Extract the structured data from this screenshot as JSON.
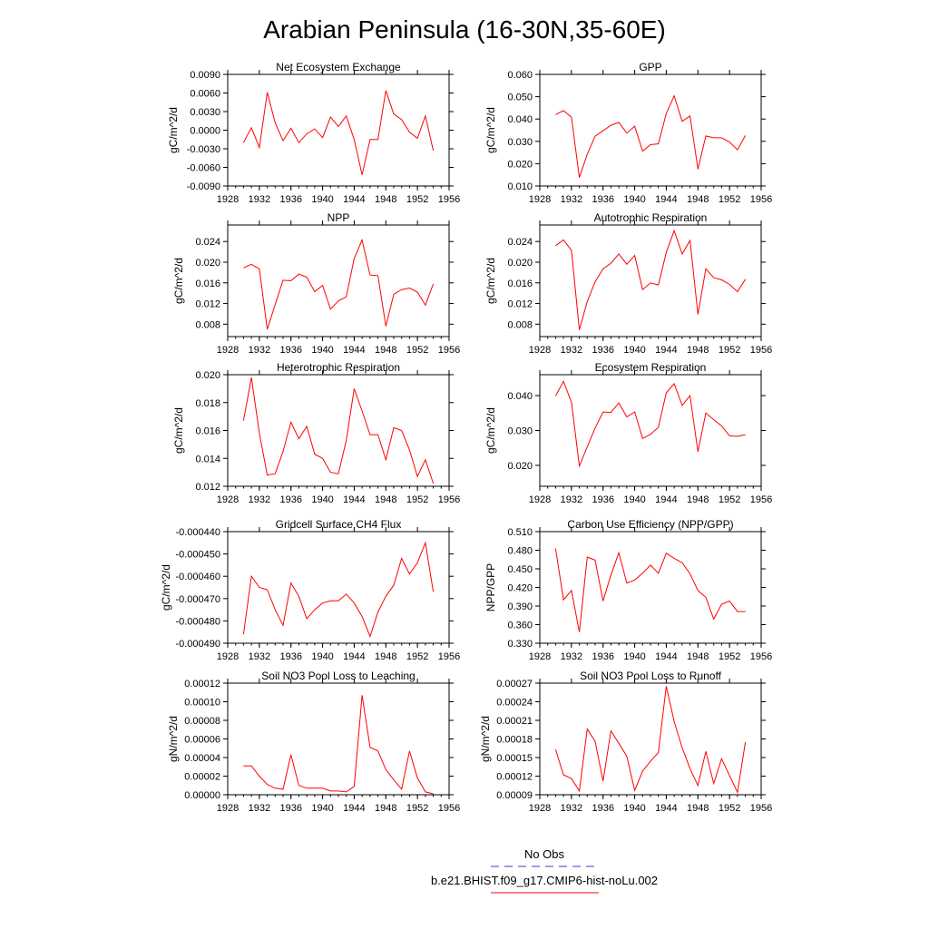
{
  "figure": {
    "title": "Arabian Peninsula (16-30N,35-60E)",
    "series_color": "#ff0000",
    "obs_color": "#3b3bd0"
  },
  "legend": {
    "obs_label": "No Obs",
    "model_label": "b.e21.BHIST.f09_g17.CMIP6-hist-noLu.002"
  },
  "x_years": [
    1930,
    1931,
    1932,
    1933,
    1934,
    1935,
    1936,
    1937,
    1938,
    1939,
    1940,
    1941,
    1942,
    1943,
    1944,
    1945,
    1946,
    1947,
    1948,
    1949,
    1950,
    1951,
    1952,
    1953,
    1954
  ],
  "chart_data": [
    {
      "type": "line",
      "title": "Net Ecosystem Exchange",
      "ylabel": "gC/m^2/d",
      "xlim": [
        1928,
        1956
      ],
      "xticks": [
        1928,
        1932,
        1936,
        1940,
        1944,
        1948,
        1952,
        1956
      ],
      "ylim": [
        -0.009,
        0.009
      ],
      "yticks": [
        "-0.0090",
        "-0.0060",
        "-0.0030",
        "0.0000",
        "0.0030",
        "0.0060",
        "0.0090"
      ],
      "ytick_values": [
        -0.009,
        -0.006,
        -0.003,
        0,
        0.003,
        0.006,
        0.009
      ],
      "values": [
        -0.002,
        0.0004,
        -0.0028,
        0.0061,
        0.0012,
        -0.0017,
        0.0003,
        -0.002,
        -0.0006,
        0.0002,
        -0.0012,
        0.0021,
        0.0006,
        0.0023,
        -0.0015,
        -0.0072,
        -0.0015,
        -0.0015,
        0.0064,
        0.0026,
        0.0017,
        -0.0003,
        -0.0013,
        0.0023,
        -0.0033
      ]
    },
    {
      "type": "line",
      "title": "GPP",
      "ylabel": "gC/m^2/d",
      "xlim": [
        1928,
        1956
      ],
      "xticks": [
        1928,
        1932,
        1936,
        1940,
        1944,
        1948,
        1952,
        1956
      ],
      "ylim": [
        0.01,
        0.06
      ],
      "yticks": [
        "0.010",
        "0.020",
        "0.030",
        "0.040",
        "0.050",
        "0.060"
      ],
      "ytick_values": [
        0.01,
        0.02,
        0.03,
        0.04,
        0.05,
        0.06
      ],
      "values": [
        0.042,
        0.0438,
        0.0408,
        0.0138,
        0.0242,
        0.0323,
        0.0347,
        0.0372,
        0.0385,
        0.0337,
        0.0368,
        0.0256,
        0.0285,
        0.0289,
        0.0425,
        0.0504,
        0.039,
        0.0414,
        0.0175,
        0.0324,
        0.0316,
        0.0316,
        0.0297,
        0.0262,
        0.0326
      ]
    },
    {
      "type": "line",
      "title": "NPP",
      "ylabel": "gC/m^2/d",
      "xlim": [
        1928,
        1956
      ],
      "xticks": [
        1928,
        1932,
        1936,
        1940,
        1944,
        1948,
        1952,
        1956
      ],
      "ylim": [
        0.0056,
        0.0272
      ],
      "yticks": [
        "0.008",
        "0.012",
        "0.016",
        "0.020",
        "0.024"
      ],
      "ytick_values": [
        0.008,
        0.012,
        0.016,
        0.02,
        0.024
      ],
      "values": [
        0.0189,
        0.0196,
        0.0187,
        0.007,
        0.0118,
        0.0165,
        0.0164,
        0.0177,
        0.0171,
        0.0143,
        0.0155,
        0.0109,
        0.0125,
        0.0133,
        0.0207,
        0.0243,
        0.0175,
        0.0174,
        0.0076,
        0.0138,
        0.0147,
        0.015,
        0.0142,
        0.0117,
        0.0158
      ]
    },
    {
      "type": "line",
      "title": "Autotrophic Respiration",
      "ylabel": "gC/m^2/d",
      "xlim": [
        1928,
        1956
      ],
      "xticks": [
        1928,
        1932,
        1936,
        1940,
        1944,
        1948,
        1952,
        1956
      ],
      "ylim": [
        0.0056,
        0.0272
      ],
      "yticks": [
        "0.008",
        "0.012",
        "0.016",
        "0.020",
        "0.024"
      ],
      "ytick_values": [
        0.008,
        0.012,
        0.016,
        0.02,
        0.024
      ],
      "values": [
        0.0232,
        0.0243,
        0.0223,
        0.0069,
        0.0124,
        0.0162,
        0.0187,
        0.0198,
        0.0216,
        0.0196,
        0.0213,
        0.0147,
        0.016,
        0.0156,
        0.0219,
        0.0261,
        0.0216,
        0.0242,
        0.0099,
        0.0187,
        0.017,
        0.0166,
        0.0157,
        0.0143,
        0.0167
      ]
    },
    {
      "type": "line",
      "title": "Heterotrophic Respiration",
      "ylabel": "gC/m^2/d",
      "xlim": [
        1928,
        1956
      ],
      "xticks": [
        1928,
        1932,
        1936,
        1940,
        1944,
        1948,
        1952,
        1956
      ],
      "ylim": [
        0.012,
        0.02
      ],
      "yticks": [
        "0.012",
        "0.014",
        "0.016",
        "0.018",
        "0.020"
      ],
      "ytick_values": [
        0.012,
        0.014,
        0.016,
        0.018,
        0.02
      ],
      "values": [
        0.0167,
        0.0198,
        0.0158,
        0.0128,
        0.0129,
        0.0145,
        0.0166,
        0.0154,
        0.0163,
        0.0143,
        0.014,
        0.013,
        0.0129,
        0.0153,
        0.019,
        0.0174,
        0.0157,
        0.0157,
        0.0139,
        0.0162,
        0.016,
        0.0146,
        0.0127,
        0.0139,
        0.0122
      ]
    },
    {
      "type": "line",
      "title": "Ecosystem Respiration",
      "ylabel": "gC/m^2/d",
      "xlim": [
        1928,
        1956
      ],
      "xticks": [
        1928,
        1932,
        1936,
        1940,
        1944,
        1948,
        1952,
        1956
      ],
      "ylim": [
        0.014,
        0.046
      ],
      "yticks": [
        "0.020",
        "0.030",
        "0.040"
      ],
      "ytick_values": [
        0.02,
        0.03,
        0.04
      ],
      "values": [
        0.0399,
        0.0441,
        0.0381,
        0.0198,
        0.0253,
        0.0307,
        0.0353,
        0.0352,
        0.0379,
        0.0339,
        0.0353,
        0.0277,
        0.0289,
        0.0309,
        0.0408,
        0.0434,
        0.0372,
        0.04,
        0.0239,
        0.035,
        0.0331,
        0.0313,
        0.0285,
        0.0283,
        0.0288
      ]
    },
    {
      "type": "line",
      "title": "Gridcell Surface CH4 Flux",
      "ylabel": "gC/m^2/d",
      "xlim": [
        1928,
        1956
      ],
      "xticks": [
        1928,
        1932,
        1936,
        1940,
        1944,
        1948,
        1952,
        1956
      ],
      "ylim": [
        -0.00049,
        -0.00044
      ],
      "yticks": [
        "-0.000490",
        "-0.000480",
        "-0.000470",
        "-0.000460",
        "-0.000450",
        "-0.000440"
      ],
      "ytick_values": [
        -0.00049,
        -0.00048,
        -0.00047,
        -0.00046,
        -0.00045,
        -0.00044
      ],
      "values": [
        -0.000486,
        -0.00046,
        -0.000465,
        -0.000466,
        -0.000475,
        -0.000482,
        -0.000463,
        -0.000469,
        -0.000479,
        -0.000475,
        -0.000472,
        -0.000471,
        -0.000471,
        -0.000468,
        -0.000472,
        -0.000478,
        -0.000487,
        -0.000476,
        -0.000469,
        -0.000464,
        -0.000452,
        -0.000459,
        -0.000454,
        -0.000445,
        -0.000467
      ]
    },
    {
      "type": "line",
      "title": "Carbon Use Efficiency (NPP/GPP)",
      "ylabel": "NPP/GPP",
      "xlim": [
        1928,
        1956
      ],
      "xticks": [
        1928,
        1932,
        1936,
        1940,
        1944,
        1948,
        1952,
        1956
      ],
      "ylim": [
        0.33,
        0.51
      ],
      "yticks": [
        "0.330",
        "0.360",
        "0.390",
        "0.420",
        "0.450",
        "0.480",
        "0.510"
      ],
      "ytick_values": [
        0.33,
        0.36,
        0.39,
        0.42,
        0.45,
        0.48,
        0.51
      ],
      "values": [
        0.483,
        0.4,
        0.415,
        0.348,
        0.469,
        0.464,
        0.398,
        0.44,
        0.476,
        0.427,
        0.432,
        0.443,
        0.456,
        0.443,
        0.475,
        0.467,
        0.46,
        0.442,
        0.415,
        0.404,
        0.369,
        0.393,
        0.398,
        0.381,
        0.381
      ]
    },
    {
      "type": "line",
      "title": "Soil NO3 Pool Loss to Leaching",
      "ylabel": "gN/m^2/d",
      "xlim": [
        1928,
        1956
      ],
      "xticks": [
        1928,
        1932,
        1936,
        1940,
        1944,
        1948,
        1952,
        1956
      ],
      "ylim": [
        0,
        0.00012
      ],
      "yticks": [
        "0.00000",
        "0.00002",
        "0.00004",
        "0.00006",
        "0.00008",
        "0.00010",
        "0.00012"
      ],
      "ytick_values": [
        0,
        2e-05,
        4e-05,
        6e-05,
        8e-05,
        0.0001,
        0.00012
      ],
      "values": [
        3.1e-05,
        3.1e-05,
        2e-05,
        1.1e-05,
        7e-06,
        6e-06,
        4.3e-05,
        1e-05,
        7e-06,
        7e-06,
        7e-06,
        4e-06,
        4e-06,
        3e-06,
        9e-06,
        0.000107,
        5.1e-05,
        4.7e-05,
        2.7e-05,
        1.6e-05,
        6e-06,
        4.7e-05,
        1.8e-05,
        3e-06,
        1e-06
      ]
    },
    {
      "type": "line",
      "title": "Soil NO3 Pool Loss to Runoff",
      "ylabel": "gN/m^2/d",
      "xlim": [
        1928,
        1956
      ],
      "xticks": [
        1928,
        1932,
        1936,
        1940,
        1944,
        1948,
        1952,
        1956
      ],
      "ylim": [
        9e-05,
        0.00027
      ],
      "yticks": [
        "0.00009",
        "0.00012",
        "0.00015",
        "0.00018",
        "0.00021",
        "0.00024",
        "0.00027"
      ],
      "ytick_values": [
        9e-05,
        0.00012,
        0.00015,
        0.00018,
        0.00021,
        0.00024,
        0.00027
      ],
      "values": [
        0.000163,
        0.000122,
        0.000116,
        9.6e-05,
        0.000196,
        0.000176,
        0.000112,
        0.000193,
        0.000173,
        0.000152,
        9.7e-05,
        0.000128,
        0.000144,
        0.000158,
        0.000265,
        0.000208,
        0.000166,
        0.000132,
        0.000105,
        0.00016,
        0.000108,
        0.000148,
        0.000121,
        9.4e-05,
        0.000175
      ]
    }
  ]
}
